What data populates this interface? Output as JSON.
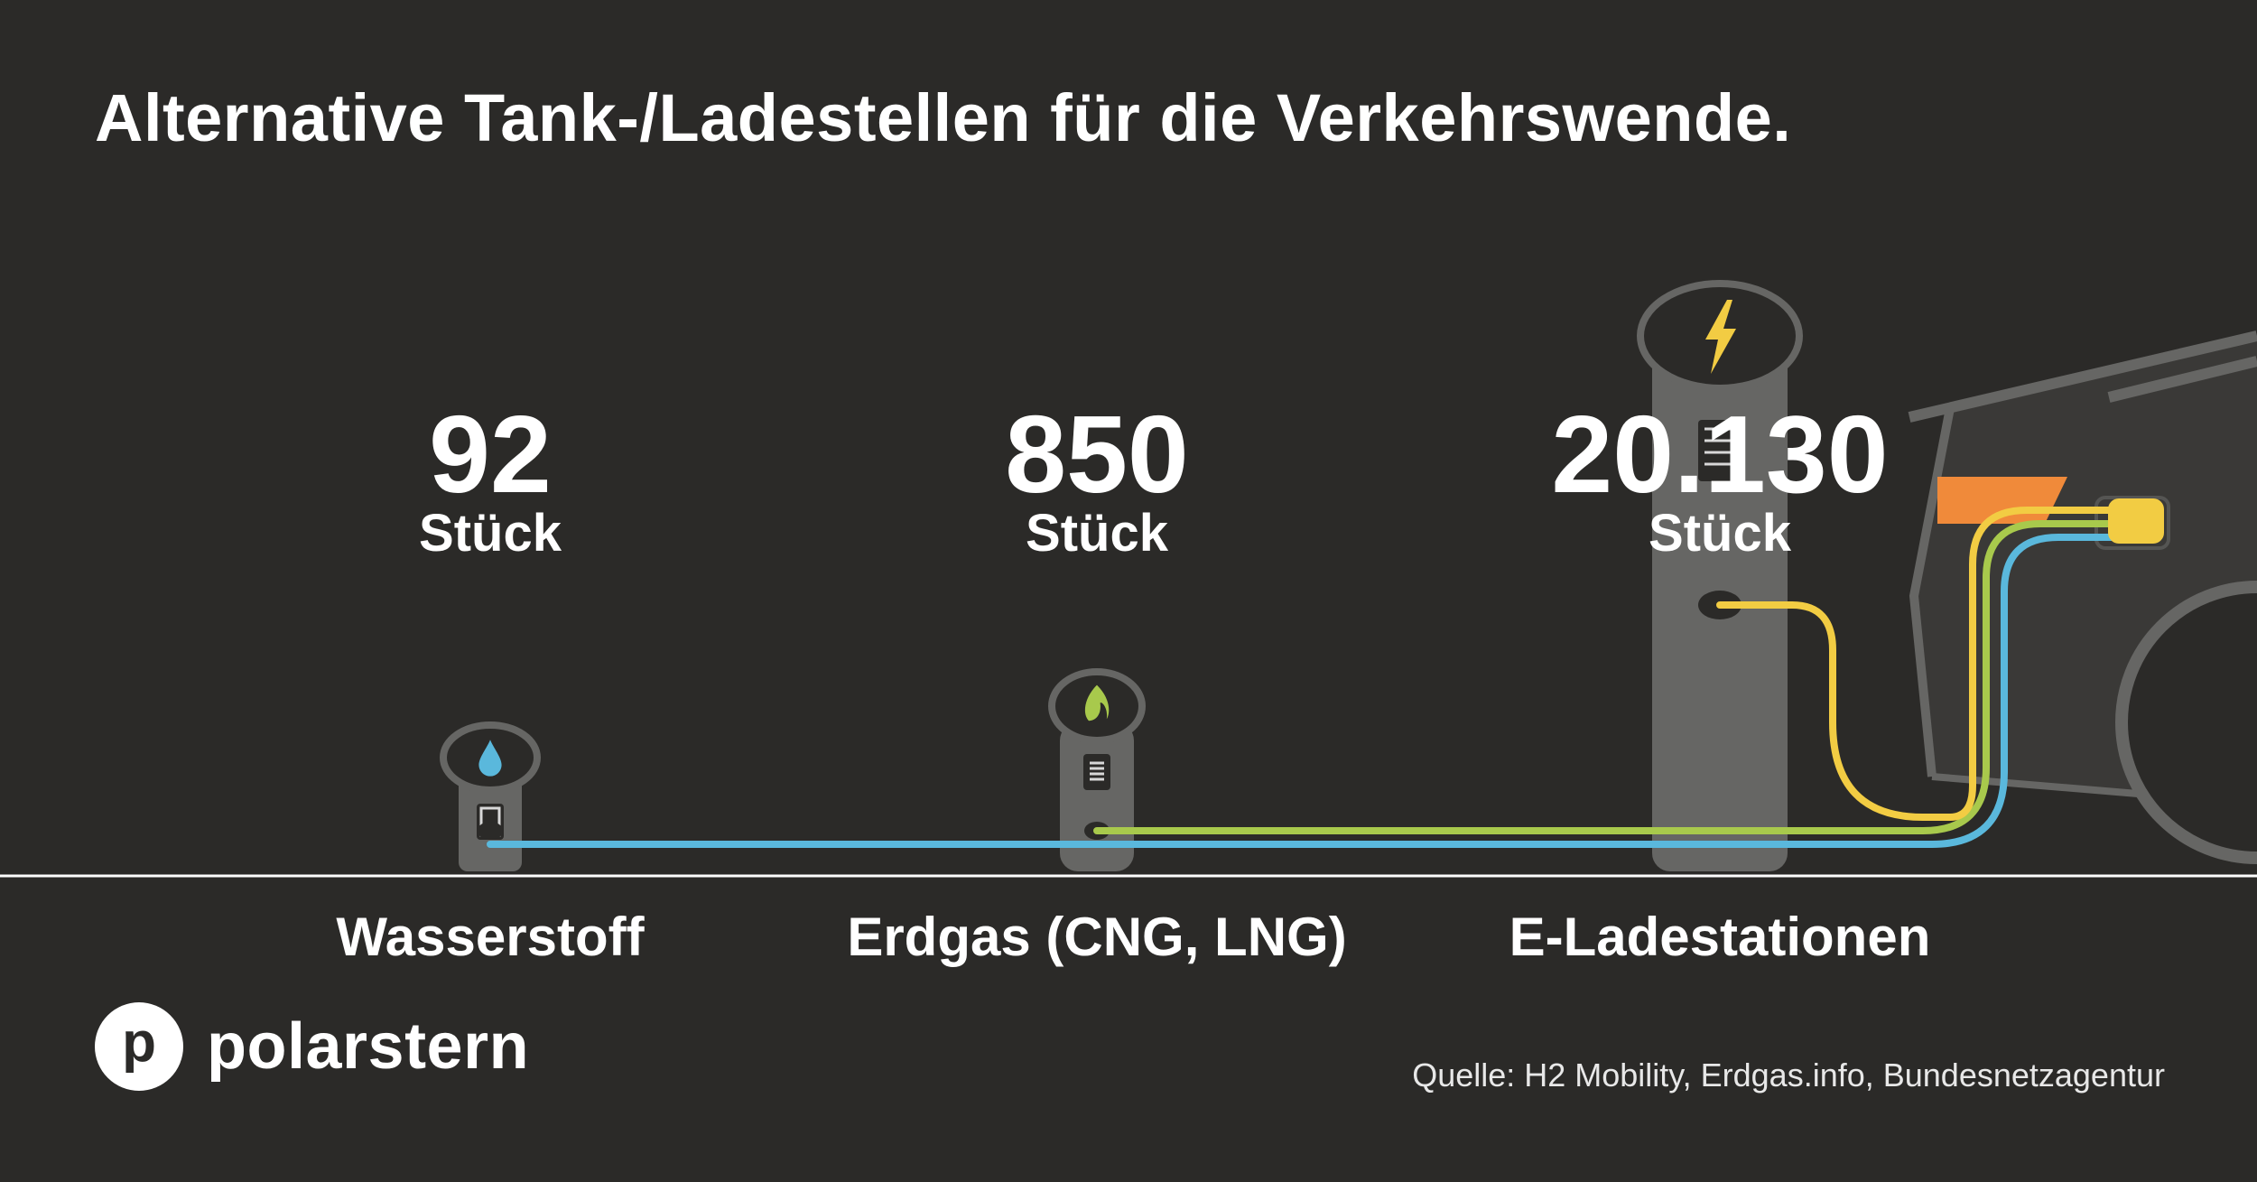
{
  "title": "Alternative Tank-/Ladestellen für die Verkehrswende.",
  "chart_data": {
    "type": "bar",
    "categories": [
      "Wasserstoff",
      "Erdgas (CNG, LNG)",
      "E-Ladestationen"
    ],
    "values": [
      92,
      850,
      20130
    ],
    "value_labels": [
      "92",
      "850",
      "20.130"
    ],
    "unit": "Stück",
    "icons": [
      "water-drop-icon",
      "flame-icon",
      "lightning-icon"
    ],
    "cable_colors": [
      "#5ab8dc",
      "#a8c94c",
      "#f2cc43"
    ]
  },
  "colors": {
    "background": "#2b2a28",
    "pillar": "#666664",
    "text": "#ffffff",
    "accent_orange": "#f08a3a"
  },
  "brand": {
    "mark": "p",
    "name": "polarstern"
  },
  "source": "Quelle: H2 Mobility, Erdgas.info, Bundesnetzagentur"
}
